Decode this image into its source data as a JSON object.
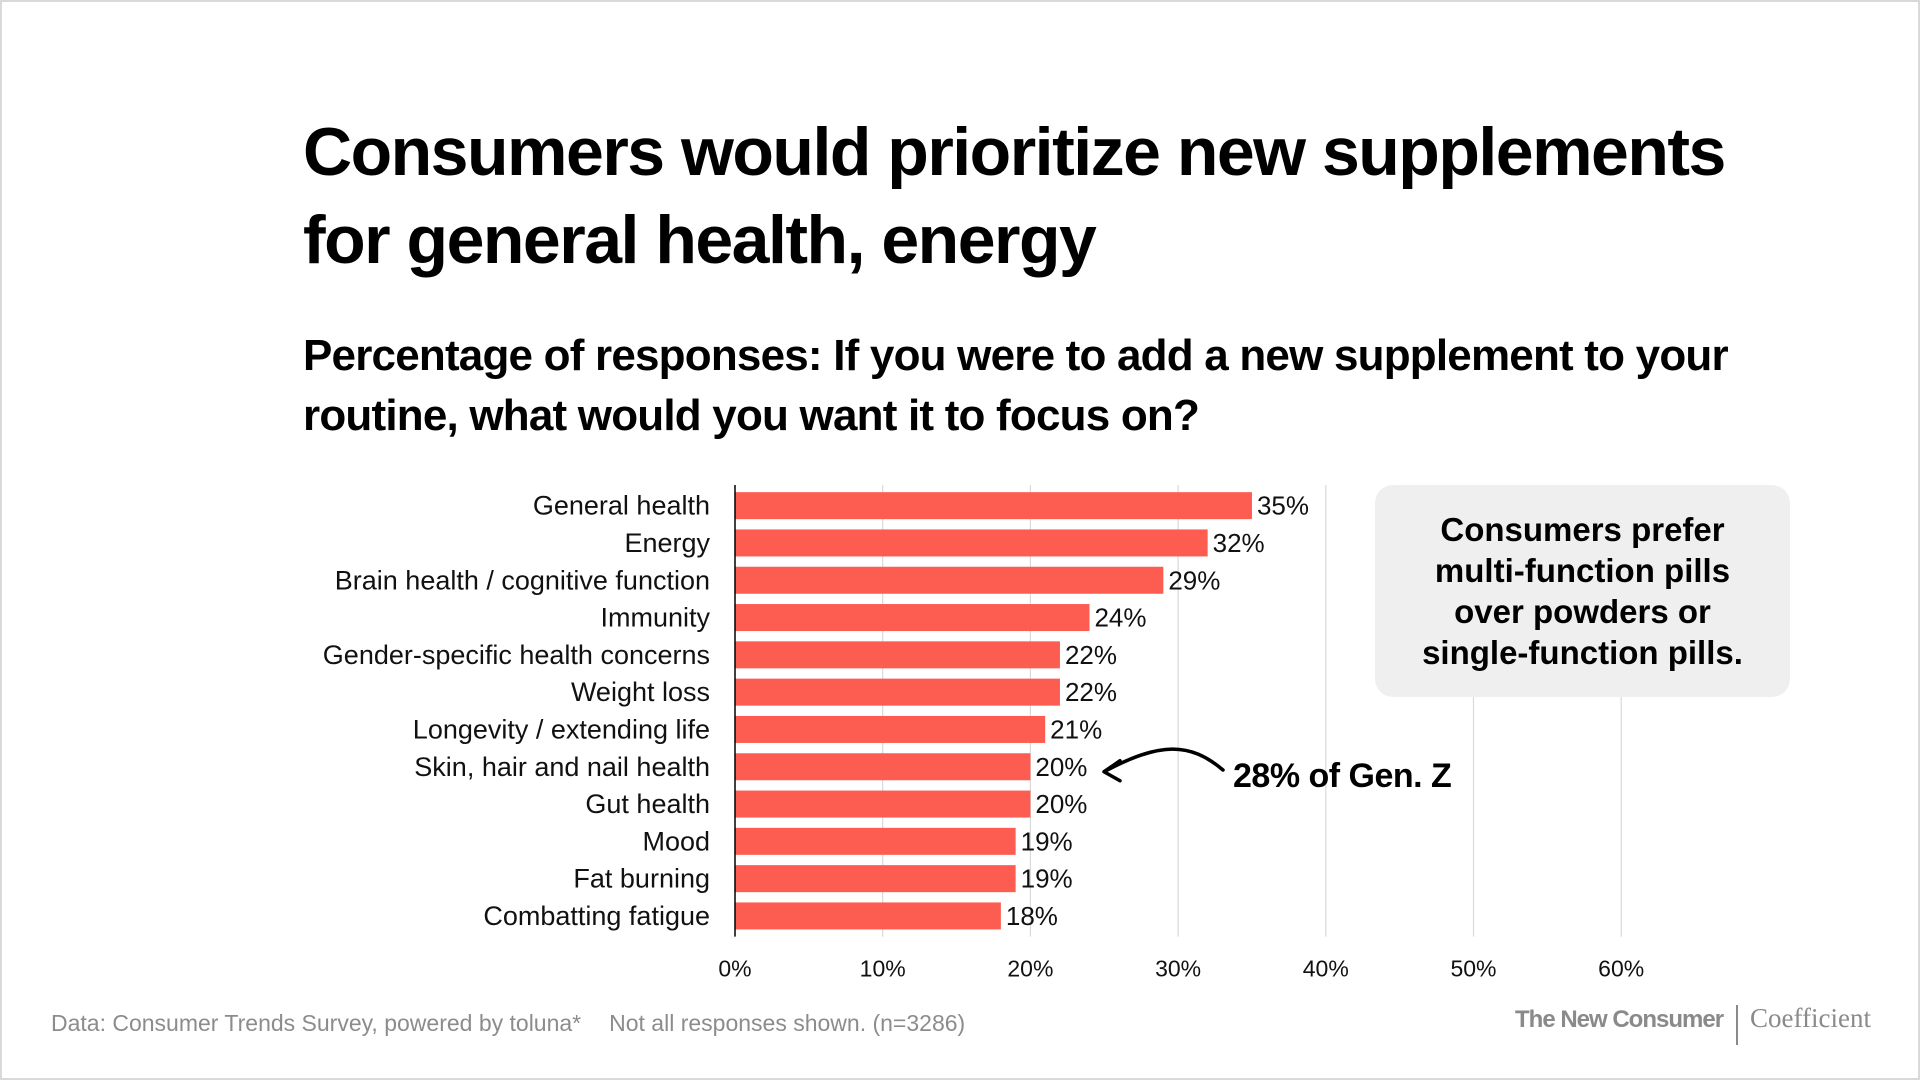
{
  "title": "Consumers would prioritize new supplements for general health, energy",
  "subtitle": "Percentage of responses: If you were to add a new supplement to your routine, what would you want it to focus on?",
  "callout": "Consumers prefer multi-function pills over powders or single-function pills.",
  "annotation": {
    "text": "28% of Gen. Z",
    "target_category": "Skin, hair and nail health"
  },
  "footer": {
    "source": "Data: Consumer Trends Survey, powered by toluna*",
    "note": "Not all responses shown. (n=3286)",
    "logo_primary": "The New Consumer",
    "logo_secondary": "Coefficient"
  },
  "colors": {
    "bar": "#fd5c50",
    "grid": "#d9d9d9",
    "callout_bg": "#efefef",
    "footer_text": "#8c8c8c"
  },
  "chart_data": {
    "type": "bar",
    "orientation": "horizontal",
    "title": "Consumers would prioritize new supplements for general health, energy",
    "subtitle": "Percentage of responses: If you were to add a new supplement to your routine, what would you want it to focus on?",
    "categories": [
      "General health",
      "Energy",
      "Brain health / cognitive function",
      "Immunity",
      "Gender-specific health concerns",
      "Weight loss",
      "Longevity / extending life",
      "Skin, hair and nail health",
      "Gut health",
      "Mood",
      "Fat burning",
      "Combatting fatigue"
    ],
    "values": [
      35,
      32,
      29,
      24,
      22,
      22,
      21,
      20,
      20,
      19,
      19,
      18
    ],
    "value_labels": [
      "35%",
      "32%",
      "29%",
      "24%",
      "22%",
      "22%",
      "21%",
      "20%",
      "20%",
      "19%",
      "19%",
      "18%"
    ],
    "xlabel": "",
    "ylabel": "",
    "xlim": [
      0,
      60
    ],
    "xticks": [
      0,
      10,
      20,
      30,
      40,
      50,
      60
    ],
    "xtick_labels": [
      "0%",
      "10%",
      "20%",
      "30%",
      "40%",
      "50%",
      "60%"
    ],
    "grid": true,
    "legend": "none"
  }
}
